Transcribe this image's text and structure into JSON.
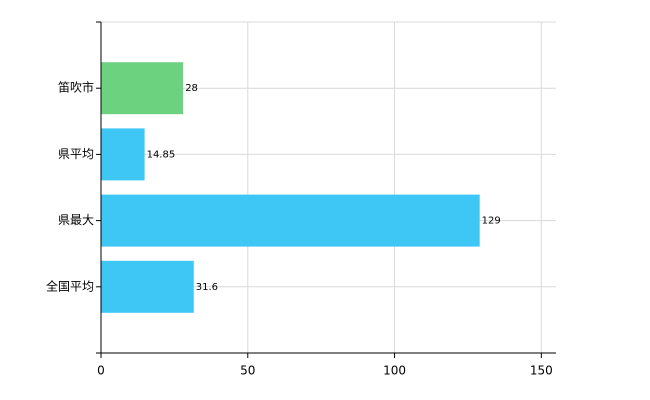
{
  "chart_data": {
    "type": "hbar",
    "categories": [
      "笛吹市",
      "県平均",
      "県最大",
      "全国平均"
    ],
    "values": [
      28,
      14.85,
      129,
      31.6
    ],
    "colors": [
      "#6dd27f",
      "#3ec6f4",
      "#3ec6f4",
      "#3ec6f4"
    ],
    "xlim": [
      0,
      155
    ],
    "xticks": [
      0,
      50,
      100,
      150
    ],
    "grid": true
  }
}
